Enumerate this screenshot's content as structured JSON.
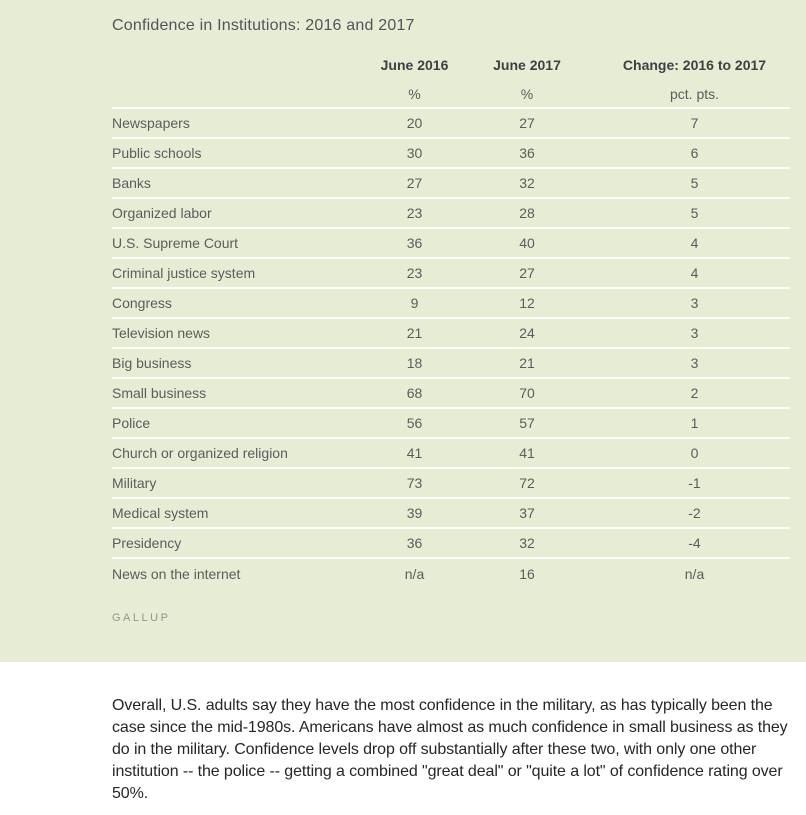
{
  "colors": {
    "card_background": "#e6edd4",
    "row_divider": "#fdfefa",
    "header_text": "#3d4144",
    "body_text": "#585d5f",
    "source_text": "#8f968f",
    "paragraph_text": "#23272a"
  },
  "chart_data": {
    "type": "table",
    "title": "Confidence in Institutions: 2016 and 2017",
    "columns": [
      "June 2016",
      "June 2017",
      "Change: 2016 to 2017"
    ],
    "units": [
      "%",
      "%",
      "pct. pts."
    ],
    "rows": [
      {
        "label": "Newspapers",
        "june_2016": "20",
        "june_2017": "27",
        "change": "7"
      },
      {
        "label": "Public schools",
        "june_2016": "30",
        "june_2017": "36",
        "change": "6"
      },
      {
        "label": "Banks",
        "june_2016": "27",
        "june_2017": "32",
        "change": "5"
      },
      {
        "label": "Organized labor",
        "june_2016": "23",
        "june_2017": "28",
        "change": "5"
      },
      {
        "label": "U.S. Supreme Court",
        "june_2016": "36",
        "june_2017": "40",
        "change": "4"
      },
      {
        "label": "Criminal justice system",
        "june_2016": "23",
        "june_2017": "27",
        "change": "4"
      },
      {
        "label": "Congress",
        "june_2016": "9",
        "june_2017": "12",
        "change": "3"
      },
      {
        "label": "Television news",
        "june_2016": "21",
        "june_2017": "24",
        "change": "3"
      },
      {
        "label": "Big business",
        "june_2016": "18",
        "june_2017": "21",
        "change": "3"
      },
      {
        "label": "Small business",
        "june_2016": "68",
        "june_2017": "70",
        "change": "2"
      },
      {
        "label": "Police",
        "june_2016": "56",
        "june_2017": "57",
        "change": "1"
      },
      {
        "label": "Church or organized religion",
        "june_2016": "41",
        "june_2017": "41",
        "change": "0"
      },
      {
        "label": "Military",
        "june_2016": "73",
        "june_2017": "72",
        "change": "-1"
      },
      {
        "label": "Medical system",
        "june_2016": "39",
        "june_2017": "37",
        "change": "-2"
      },
      {
        "label": "Presidency",
        "june_2016": "36",
        "june_2017": "32",
        "change": "-4"
      },
      {
        "label": "News on the internet",
        "june_2016": "n/a",
        "june_2017": "16",
        "change": "n/a"
      }
    ],
    "source": "GALLUP"
  },
  "article": {
    "text": "Overall, U.S. adults say they have the most confidence in the military, as has typically been the case since the mid-1980s. Americans have almost as much confidence in small business as they do in the military. Confidence levels drop off substantially after these two, with only one other institution -- the police -- getting a combined \"great deal\" or \"quite a lot\" of confidence rating over 50%."
  }
}
